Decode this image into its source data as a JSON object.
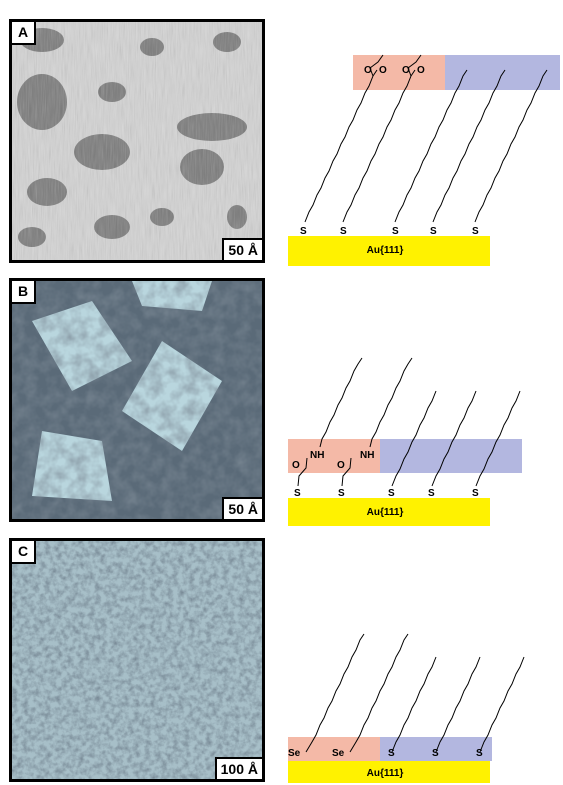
{
  "panels": [
    {
      "letter": "A",
      "scale": "50 Å"
    },
    {
      "letter": "B",
      "scale": "50 Å"
    },
    {
      "letter": "C",
      "scale": "100 Å"
    }
  ],
  "substrate_label": "Au{111}",
  "atoms": {
    "sulfur": "S",
    "selenium": "Se",
    "amide": "NH",
    "carbonyl": "O"
  },
  "colors": {
    "gold": "#fff200",
    "domain_left": "#f4b9a7",
    "domain_right": "#b3b7e0"
  }
}
